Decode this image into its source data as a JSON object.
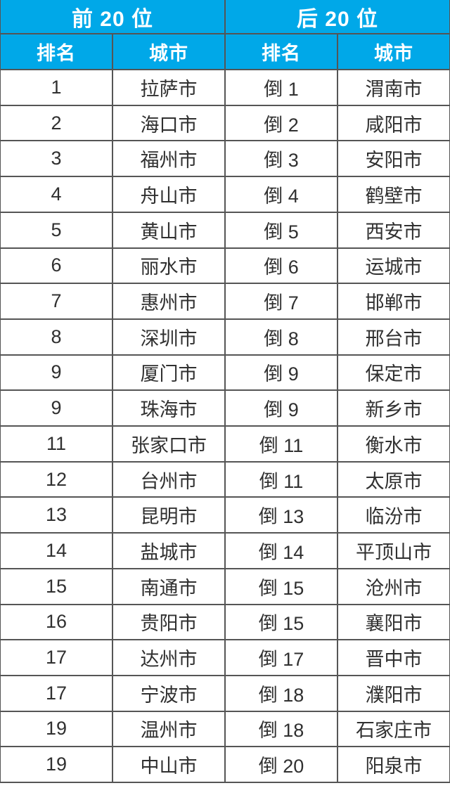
{
  "colors": {
    "header_blue": "#00a8e8",
    "header_text": "#ffffff",
    "grid_line": "#555555",
    "body_text": "#303030"
  },
  "chart_data": {
    "type": "table",
    "group_headers": [
      "前 20 位",
      "后 20 位"
    ],
    "columns": [
      "排名",
      "城市",
      "排名",
      "城市"
    ],
    "top20": [
      {
        "rank": "1",
        "city": "拉萨市"
      },
      {
        "rank": "2",
        "city": "海口市"
      },
      {
        "rank": "3",
        "city": "福州市"
      },
      {
        "rank": "4",
        "city": "舟山市"
      },
      {
        "rank": "5",
        "city": "黄山市"
      },
      {
        "rank": "6",
        "city": "丽水市"
      },
      {
        "rank": "7",
        "city": "惠州市"
      },
      {
        "rank": "8",
        "city": "深圳市"
      },
      {
        "rank": "9",
        "city": "厦门市"
      },
      {
        "rank": "9",
        "city": "珠海市"
      },
      {
        "rank": "11",
        "city": "张家口市"
      },
      {
        "rank": "12",
        "city": "台州市"
      },
      {
        "rank": "13",
        "city": "昆明市"
      },
      {
        "rank": "14",
        "city": "盐城市"
      },
      {
        "rank": "15",
        "city": "南通市"
      },
      {
        "rank": "16",
        "city": "贵阳市"
      },
      {
        "rank": "17",
        "city": "达州市"
      },
      {
        "rank": "17",
        "city": "宁波市"
      },
      {
        "rank": "19",
        "city": "温州市"
      },
      {
        "rank": "19",
        "city": "中山市"
      }
    ],
    "bottom20": [
      {
        "rank": "倒 1",
        "city": "渭南市"
      },
      {
        "rank": "倒 2",
        "city": "咸阳市"
      },
      {
        "rank": "倒 3",
        "city": "安阳市"
      },
      {
        "rank": "倒 4",
        "city": "鹤壁市"
      },
      {
        "rank": "倒 5",
        "city": "西安市"
      },
      {
        "rank": "倒 6",
        "city": "运城市"
      },
      {
        "rank": "倒 7",
        "city": "邯郸市"
      },
      {
        "rank": "倒 8",
        "city": "邢台市"
      },
      {
        "rank": "倒 9",
        "city": "保定市"
      },
      {
        "rank": "倒 9",
        "city": "新乡市"
      },
      {
        "rank": "倒 11",
        "city": "衡水市"
      },
      {
        "rank": "倒 11",
        "city": "太原市"
      },
      {
        "rank": "倒 13",
        "city": "临汾市"
      },
      {
        "rank": "倒 14",
        "city": "平顶山市"
      },
      {
        "rank": "倒 15",
        "city": "沧州市"
      },
      {
        "rank": "倒 15",
        "city": "襄阳市"
      },
      {
        "rank": "倒 17",
        "city": "晋中市"
      },
      {
        "rank": "倒 18",
        "city": "濮阳市"
      },
      {
        "rank": "倒 18",
        "city": "石家庄市"
      },
      {
        "rank": "倒 20",
        "city": "阳泉市"
      }
    ]
  }
}
